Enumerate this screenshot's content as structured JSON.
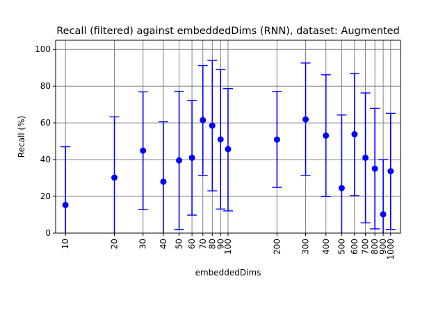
{
  "chart_data": {
    "type": "scatter",
    "title": "Recall (filtered) against embeddedDims (RNN), dataset: Augmented",
    "xlabel": "embeddedDims",
    "ylabel": "Recall (%)",
    "x_scale": "log",
    "xlim": [
      8.7,
      1150
    ],
    "ylim": [
      0,
      105
    ],
    "grid": true,
    "x_ticks": [
      10,
      20,
      30,
      40,
      50,
      60,
      70,
      80,
      90,
      100,
      200,
      300,
      400,
      500,
      600,
      700,
      800,
      900,
      1000
    ],
    "y_ticks": [
      0,
      20,
      40,
      60,
      80,
      100
    ],
    "series": [
      {
        "color": "#0000ff",
        "points": [
          {
            "x": 10,
            "y": 15.3,
            "low": 0,
            "high": 47
          },
          {
            "x": 20,
            "y": 30.2,
            "low": 0,
            "high": 63.3
          },
          {
            "x": 30,
            "y": 44.9,
            "low": 12.9,
            "high": 76.9
          },
          {
            "x": 40,
            "y": 28.0,
            "low": 0,
            "high": 60.6
          },
          {
            "x": 50,
            "y": 39.6,
            "low": 2.0,
            "high": 77.2
          },
          {
            "x": 60,
            "y": 41.0,
            "low": 9.8,
            "high": 72.2
          },
          {
            "x": 70,
            "y": 61.5,
            "low": 31.3,
            "high": 91.2
          },
          {
            "x": 80,
            "y": 58.5,
            "low": 23.0,
            "high": 94.0
          },
          {
            "x": 90,
            "y": 51.0,
            "low": 13.1,
            "high": 89.0
          },
          {
            "x": 100,
            "y": 45.7,
            "low": 12.1,
            "high": 78.7
          },
          {
            "x": 200,
            "y": 50.9,
            "low": 24.9,
            "high": 77.1
          },
          {
            "x": 300,
            "y": 61.9,
            "low": 31.3,
            "high": 92.6
          },
          {
            "x": 400,
            "y": 53.1,
            "low": 19.9,
            "high": 86.2
          },
          {
            "x": 500,
            "y": 24.5,
            "low": 0,
            "high": 64.3
          },
          {
            "x": 600,
            "y": 53.8,
            "low": 20.4,
            "high": 87.0
          },
          {
            "x": 700,
            "y": 41.0,
            "low": 5.6,
            "high": 76.3
          },
          {
            "x": 800,
            "y": 35.1,
            "low": 2.3,
            "high": 67.9
          },
          {
            "x": 900,
            "y": 10.2,
            "low": 0,
            "high": 40.0
          },
          {
            "x": 1000,
            "y": 33.7,
            "low": 2.0,
            "high": 65.2
          }
        ]
      }
    ]
  }
}
